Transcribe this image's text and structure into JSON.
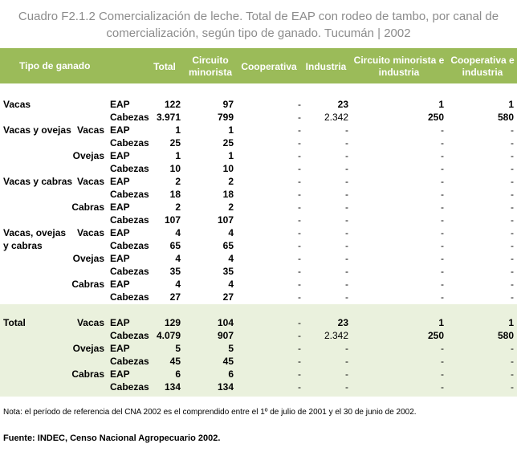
{
  "title": {
    "line1": "Cuadro F2.1.2 Comercialización de leche. Total de EAP con rodeo de tambo, por canal de",
    "line2": "comercialización, según tipo de ganado. Tucumán | 2002"
  },
  "header": {
    "tipo": "Tipo de ganado",
    "total": "Total",
    "circuito_l1": "Circuito",
    "circuito_l2": "minorista",
    "cooperativa": "Cooperativa",
    "industria": "Industria",
    "cmi_l1": "Circuito minorista e",
    "cmi_l2": "industria",
    "ci_l1": "Cooperativa e",
    "ci_l2": "industria"
  },
  "rows": [
    {
      "g1": "Vacas",
      "g2": "",
      "m": "EAP",
      "v": [
        "122",
        "97",
        "-",
        "23",
        "1",
        "1"
      ]
    },
    {
      "g1": "",
      "g2": "",
      "m": "Cabezas",
      "v": [
        "3.971",
        "799",
        "-",
        "2.342",
        "250",
        "580"
      ]
    },
    {
      "g1": "Vacas y ovejas",
      "g2": "Vacas",
      "m": "EAP",
      "v": [
        "1",
        "1",
        "-",
        "-",
        "-",
        "-"
      ]
    },
    {
      "g1": "",
      "g2": "",
      "m": "Cabezas",
      "v": [
        "25",
        "25",
        "-",
        "-",
        "-",
        "-"
      ]
    },
    {
      "g1": "",
      "g2": "Ovejas",
      "m": "EAP",
      "v": [
        "1",
        "1",
        "-",
        "-",
        "-",
        "-"
      ]
    },
    {
      "g1": "",
      "g2": "",
      "m": "Cabezas",
      "v": [
        "10",
        "10",
        "-",
        "-",
        "-",
        "-"
      ]
    },
    {
      "g1": "Vacas y cabras",
      "g2": "Vacas",
      "m": "EAP",
      "v": [
        "2",
        "2",
        "-",
        "-",
        "-",
        "-"
      ]
    },
    {
      "g1": "",
      "g2": "",
      "m": "Cabezas",
      "v": [
        "18",
        "18",
        "-",
        "-",
        "-",
        "-"
      ]
    },
    {
      "g1": "",
      "g2": "Cabras",
      "m": "EAP",
      "v": [
        "2",
        "2",
        "-",
        "-",
        "-",
        "-"
      ]
    },
    {
      "g1": "",
      "g2": "",
      "m": "Cabezas",
      "v": [
        "107",
        "107",
        "-",
        "-",
        "-",
        "-"
      ]
    },
    {
      "g1": "Vacas, ovejas",
      "g2": "Vacas",
      "m": "EAP",
      "v": [
        "4",
        "4",
        "-",
        "-",
        "-",
        "-"
      ]
    },
    {
      "g1": " y cabras",
      "g2": "",
      "m": "Cabezas",
      "v": [
        "65",
        "65",
        "-",
        "-",
        "-",
        "-"
      ]
    },
    {
      "g1": "",
      "g2": "Ovejas",
      "m": "EAP",
      "v": [
        "4",
        "4",
        "-",
        "-",
        "-",
        "-"
      ]
    },
    {
      "g1": "",
      "g2": "",
      "m": "Cabezas",
      "v": [
        "35",
        "35",
        "-",
        "-",
        "-",
        "-"
      ]
    },
    {
      "g1": "",
      "g2": "Cabras",
      "m": "EAP",
      "v": [
        "4",
        "4",
        "-",
        "-",
        "-",
        "-"
      ]
    },
    {
      "g1": "",
      "g2": "",
      "m": "Cabezas",
      "v": [
        "27",
        "27",
        "-",
        "-",
        "-",
        "-"
      ]
    }
  ],
  "total_rows": [
    {
      "g1": "Total",
      "g2": "Vacas",
      "m": "EAP",
      "v": [
        "129",
        "104",
        "-",
        "23",
        "1",
        "1"
      ]
    },
    {
      "g1": "",
      "g2": "",
      "m": "Cabezas",
      "v": [
        "4.079",
        "907",
        "-",
        "2.342",
        "250",
        "580"
      ]
    },
    {
      "g1": "",
      "g2": "Ovejas",
      "m": "EAP",
      "v": [
        "5",
        "5",
        "-",
        "-",
        "-",
        "-"
      ]
    },
    {
      "g1": "",
      "g2": "",
      "m": "Cabezas",
      "v": [
        "45",
        "45",
        "-",
        "-",
        "-",
        "-"
      ]
    },
    {
      "g1": "",
      "g2": "Cabras",
      "m": "EAP",
      "v": [
        "6",
        "6",
        "-",
        "-",
        "-",
        "-"
      ]
    },
    {
      "g1": "",
      "g2": "",
      "m": "Cabezas",
      "v": [
        "134",
        "134",
        "-",
        "-",
        "-",
        "-"
      ]
    }
  ],
  "note": "Nota: el período de referencia del CNA 2002 es el comprendido entre el 1º de julio de 2001 y el 30 de junio de 2002.",
  "source": "Fuente: INDEC, Censo Nacional Agropecuario 2002.",
  "colors": {
    "header": "#9bbb59",
    "total_band": "#eaf1dd",
    "title": "#8c8c8c"
  }
}
